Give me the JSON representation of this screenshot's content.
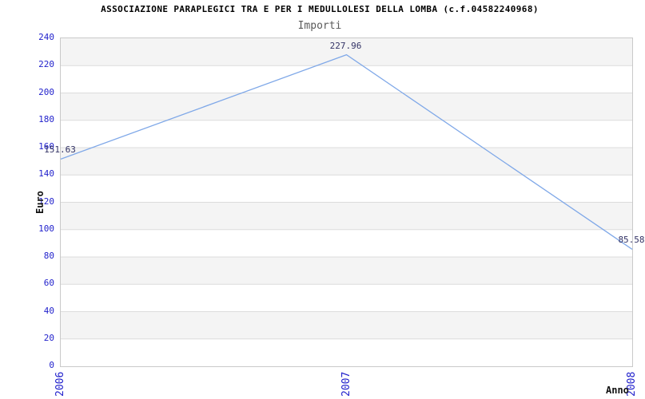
{
  "chart_data": {
    "type": "line",
    "title": "ASSOCIAZIONE PARAPLEGICI TRA E PER I MEDULLOLESI DELLA LOMBA (c.f.04582240968)",
    "subtitle": "Importi",
    "categories": [
      "2006",
      "2007",
      "2008"
    ],
    "series": [
      {
        "name": "Importi",
        "values": [
          151.63,
          227.96,
          85.58
        ]
      }
    ],
    "point_labels": [
      "151.63",
      "227.96",
      "85.58"
    ],
    "xlabel": "Anno",
    "ylabel": "Euro",
    "ylim": [
      0,
      240
    ],
    "ytick_step": 20,
    "ytick_labels": [
      "0",
      "20",
      "40",
      "60",
      "80",
      "100",
      "120",
      "140",
      "160",
      "180",
      "200",
      "220",
      "240"
    ],
    "grid": "horizontal-bands",
    "legend": "none",
    "colors": {
      "line": "#7fa8e8",
      "tick_label": "#2222cc",
      "value_label": "#333366",
      "band": "#f4f4f4",
      "gridline": "#dcdcdc",
      "plot_border": "#c9c9c9",
      "title": "#000000",
      "subtitle": "#5a5a5a",
      "axis_title": "#111111"
    }
  }
}
